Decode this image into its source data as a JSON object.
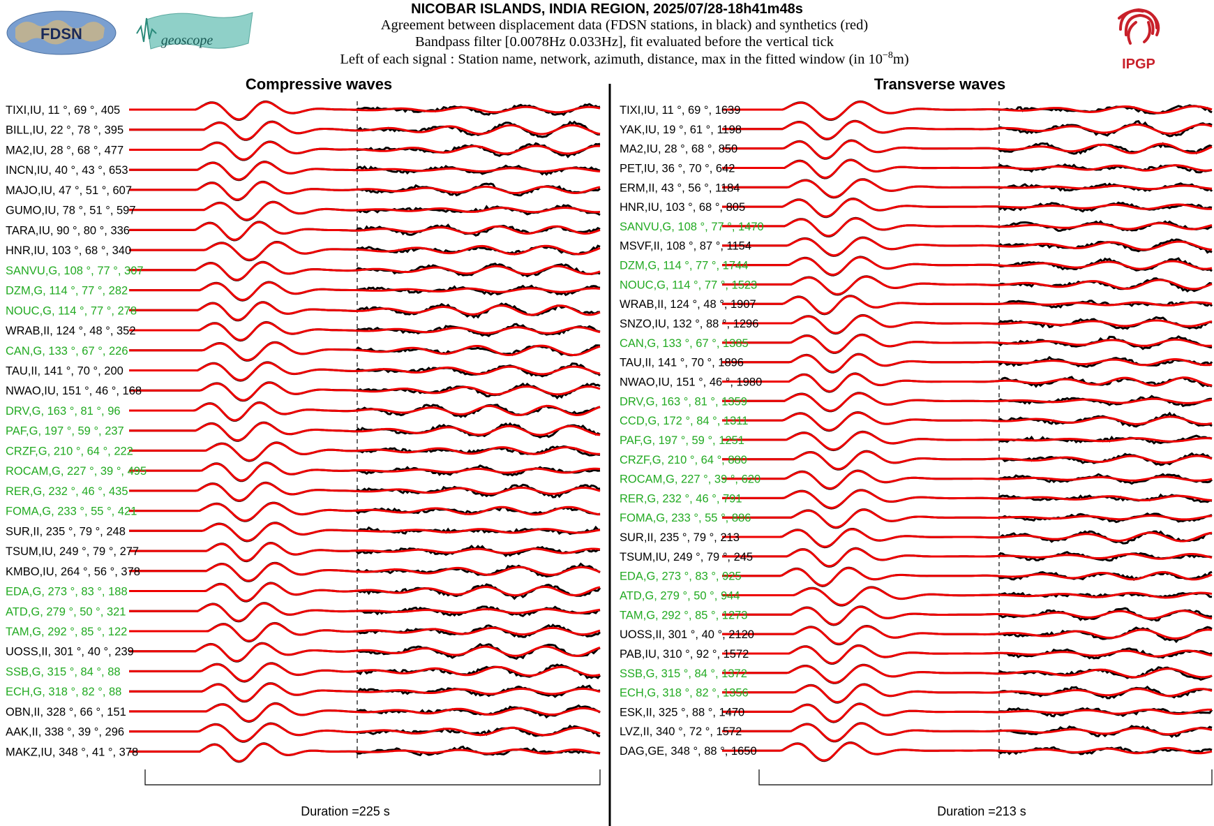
{
  "header": {
    "title": "NICOBAR ISLANDS, INDIA REGION, 2025/07/28-18h41m48s",
    "line1": "Agreement between displacement data (FDSN stations, in black) and synthetics (red)",
    "line2": "Bandpass filter [0.0078Hz 0.033Hz], fit evaluated before the vertical tick",
    "line3_prefix": "Left of each signal : Station name, network, azimuth, distance, max in the fitted window (in 10",
    "line3_exp": "−8",
    "line3_suffix": "m)"
  },
  "logos": {
    "fdsn": "FDSN",
    "geoscope": "geoscope",
    "ipgp": "IPGP"
  },
  "colors": {
    "data": "#000000",
    "synthetic": "#ee0000",
    "geoscope_label": "#22aa22",
    "default_label": "#000000"
  },
  "chart_data": [
    {
      "type": "line",
      "title": "Compressive waves",
      "duration_label": "Duration =225 s",
      "duration_s": 225,
      "series_legend": {
        "data": "black",
        "synthetics": "red"
      },
      "stations": [
        {
          "label": "TIXI,IU, 11 °, 69 °, 405",
          "net": "IU",
          "az": 11,
          "dist": 69,
          "max": 405
        },
        {
          "label": "BILL,IU, 22 °, 78 °, 395",
          "net": "IU",
          "az": 22,
          "dist": 78,
          "max": 395
        },
        {
          "label": "MA2,IU, 28 °, 68 °, 477",
          "net": "IU",
          "az": 28,
          "dist": 68,
          "max": 477
        },
        {
          "label": "INCN,IU, 40 °, 43 °, 653",
          "net": "IU",
          "az": 40,
          "dist": 43,
          "max": 653
        },
        {
          "label": "MAJO,IU, 47 °, 51 °, 607",
          "net": "IU",
          "az": 47,
          "dist": 51,
          "max": 607
        },
        {
          "label": "GUMO,IU, 78 °, 51 °, 597",
          "net": "IU",
          "az": 78,
          "dist": 51,
          "max": 597
        },
        {
          "label": "TARA,IU, 90 °, 80 °, 336",
          "net": "IU",
          "az": 90,
          "dist": 80,
          "max": 336
        },
        {
          "label": "HNR,IU, 103 °, 68 °, 340",
          "net": "IU",
          "az": 103,
          "dist": 68,
          "max": 340
        },
        {
          "label": "SANVU,G, 108 °, 77 °, 307",
          "net": "G",
          "az": 108,
          "dist": 77,
          "max": 307
        },
        {
          "label": "DZM,G, 114 °, 77 °, 282",
          "net": "G",
          "az": 114,
          "dist": 77,
          "max": 282
        },
        {
          "label": "NOUC,G, 114 °, 77 °, 278",
          "net": "G",
          "az": 114,
          "dist": 77,
          "max": 278
        },
        {
          "label": "WRAB,II, 124 °, 48 °, 352",
          "net": "II",
          "az": 124,
          "dist": 48,
          "max": 352
        },
        {
          "label": "CAN,G, 133 °, 67 °, 226",
          "net": "G",
          "az": 133,
          "dist": 67,
          "max": 226
        },
        {
          "label": "TAU,II, 141 °, 70 °, 200",
          "net": "II",
          "az": 141,
          "dist": 70,
          "max": 200
        },
        {
          "label": "NWAO,IU, 151 °, 46 °, 168",
          "net": "IU",
          "az": 151,
          "dist": 46,
          "max": 168
        },
        {
          "label": "DRV,G, 163 °, 81 °, 96",
          "net": "G",
          "az": 163,
          "dist": 81,
          "max": 96
        },
        {
          "label": "PAF,G, 197 °, 59 °, 237",
          "net": "G",
          "az": 197,
          "dist": 59,
          "max": 237
        },
        {
          "label": "CRZF,G, 210 °, 64 °, 222",
          "net": "G",
          "az": 210,
          "dist": 64,
          "max": 222
        },
        {
          "label": "ROCAM,G, 227 °, 39 °, 495",
          "net": "G",
          "az": 227,
          "dist": 39,
          "max": 495
        },
        {
          "label": "RER,G, 232 °, 46 °, 435",
          "net": "G",
          "az": 232,
          "dist": 46,
          "max": 435
        },
        {
          "label": "FOMA,G, 233 °, 55 °, 421",
          "net": "G",
          "az": 233,
          "dist": 55,
          "max": 421
        },
        {
          "label": "SUR,II, 235 °, 79 °, 248",
          "net": "II",
          "az": 235,
          "dist": 79,
          "max": 248
        },
        {
          "label": "TSUM,IU, 249 °, 79 °, 277",
          "net": "IU",
          "az": 249,
          "dist": 79,
          "max": 277
        },
        {
          "label": "KMBO,IU, 264 °, 56 °, 378",
          "net": "IU",
          "az": 264,
          "dist": 56,
          "max": 378
        },
        {
          "label": "EDA,G, 273 °, 83 °, 188",
          "net": "G",
          "az": 273,
          "dist": 83,
          "max": 188
        },
        {
          "label": "ATD,G, 279 °, 50 °, 321",
          "net": "G",
          "az": 279,
          "dist": 50,
          "max": 321
        },
        {
          "label": "TAM,G, 292 °, 85 °, 122",
          "net": "G",
          "az": 292,
          "dist": 85,
          "max": 122
        },
        {
          "label": "UOSS,II, 301 °, 40 °, 239",
          "net": "II",
          "az": 301,
          "dist": 40,
          "max": 239
        },
        {
          "label": "SSB,G, 315 °, 84 °, 88",
          "net": "G",
          "az": 315,
          "dist": 84,
          "max": 88
        },
        {
          "label": "ECH,G, 318 °, 82 °, 88",
          "net": "G",
          "az": 318,
          "dist": 82,
          "max": 88
        },
        {
          "label": "OBN,II, 328 °, 66 °, 151",
          "net": "II",
          "az": 328,
          "dist": 66,
          "max": 151
        },
        {
          "label": "AAK,II, 338 °, 39 °, 296",
          "net": "II",
          "az": 338,
          "dist": 39,
          "max": 296
        },
        {
          "label": "MAKZ,IU, 348 °, 41 °, 378",
          "net": "IU",
          "az": 348,
          "dist": 41,
          "max": 378
        }
      ]
    },
    {
      "type": "line",
      "title": "Transverse waves",
      "duration_label": "Duration =213 s",
      "duration_s": 213,
      "series_legend": {
        "data": "black",
        "synthetics": "red"
      },
      "stations": [
        {
          "label": "TIXI,IU, 11 °, 69 °, 1639",
          "net": "IU",
          "az": 11,
          "dist": 69,
          "max": 1639
        },
        {
          "label": "YAK,IU, 19 °, 61 °, 1198",
          "net": "IU",
          "az": 19,
          "dist": 61,
          "max": 1198
        },
        {
          "label": "MA2,IU, 28 °, 68 °, 850",
          "net": "IU",
          "az": 28,
          "dist": 68,
          "max": 850
        },
        {
          "label": "PET,IU, 36 °, 70 °, 642",
          "net": "IU",
          "az": 36,
          "dist": 70,
          "max": 642
        },
        {
          "label": "ERM,II, 43 °, 56 °, 1184",
          "net": "II",
          "az": 43,
          "dist": 56,
          "max": 1184
        },
        {
          "label": "HNR,IU, 103 °, 68 °, 805",
          "net": "IU",
          "az": 103,
          "dist": 68,
          "max": 805
        },
        {
          "label": "SANVU,G, 108 °, 77 °, 1470",
          "net": "G",
          "az": 108,
          "dist": 77,
          "max": 1470
        },
        {
          "label": "MSVF,II, 108 °, 87 °, 1154",
          "net": "II",
          "az": 108,
          "dist": 87,
          "max": 1154
        },
        {
          "label": "DZM,G, 114 °, 77 °, 1744",
          "net": "G",
          "az": 114,
          "dist": 77,
          "max": 1744
        },
        {
          "label": "NOUC,G, 114 °, 77 °, 1523",
          "net": "G",
          "az": 114,
          "dist": 77,
          "max": 1523
        },
        {
          "label": "WRAB,II, 124 °, 48 °, 1907",
          "net": "II",
          "az": 124,
          "dist": 48,
          "max": 1907
        },
        {
          "label": "SNZO,IU, 132 °, 88 °, 1296",
          "net": "IU",
          "az": 132,
          "dist": 88,
          "max": 1296
        },
        {
          "label": "CAN,G, 133 °, 67 °, 1385",
          "net": "G",
          "az": 133,
          "dist": 67,
          "max": 1385
        },
        {
          "label": "TAU,II, 141 °, 70 °, 1896",
          "net": "II",
          "az": 141,
          "dist": 70,
          "max": 1896
        },
        {
          "label": "NWAO,IU, 151 °, 46 °, 1980",
          "net": "IU",
          "az": 151,
          "dist": 46,
          "max": 1980
        },
        {
          "label": "DRV,G, 163 °, 81 °, 1359",
          "net": "G",
          "az": 163,
          "dist": 81,
          "max": 1359
        },
        {
          "label": "CCD,G, 172 °, 84 °, 1311",
          "net": "G",
          "az": 172,
          "dist": 84,
          "max": 1311
        },
        {
          "label": "PAF,G, 197 °, 59 °, 1251",
          "net": "G",
          "az": 197,
          "dist": 59,
          "max": 1251
        },
        {
          "label": "CRZF,G, 210 °, 64 °, 880",
          "net": "G",
          "az": 210,
          "dist": 64,
          "max": 880
        },
        {
          "label": "ROCAM,G, 227 °, 39 °, 620",
          "net": "G",
          "az": 227,
          "dist": 39,
          "max": 620
        },
        {
          "label": "RER,G, 232 °, 46 °, 791",
          "net": "G",
          "az": 232,
          "dist": 46,
          "max": 791
        },
        {
          "label": "FOMA,G, 233 °, 55 °, 886",
          "net": "G",
          "az": 233,
          "dist": 55,
          "max": 886
        },
        {
          "label": "SUR,II, 235 °, 79 °, 213",
          "net": "II",
          "az": 235,
          "dist": 79,
          "max": 213
        },
        {
          "label": "TSUM,IU, 249 °, 79 °, 245",
          "net": "IU",
          "az": 249,
          "dist": 79,
          "max": 245
        },
        {
          "label": "EDA,G, 273 °, 83 °, 925",
          "net": "G",
          "az": 273,
          "dist": 83,
          "max": 925
        },
        {
          "label": "ATD,G, 279 °, 50 °, 944",
          "net": "G",
          "az": 279,
          "dist": 50,
          "max": 944
        },
        {
          "label": "TAM,G, 292 °, 85 °, 1273",
          "net": "G",
          "az": 292,
          "dist": 85,
          "max": 1273
        },
        {
          "label": "UOSS,II, 301 °, 40 °, 2120",
          "net": "II",
          "az": 301,
          "dist": 40,
          "max": 2120
        },
        {
          "label": "PAB,IU, 310 °, 92 °, 1572",
          "net": "IU",
          "az": 310,
          "dist": 92,
          "max": 1572
        },
        {
          "label": "SSB,G, 315 °, 84 °, 1372",
          "net": "G",
          "az": 315,
          "dist": 84,
          "max": 1372
        },
        {
          "label": "ECH,G, 318 °, 82 °, 1356",
          "net": "G",
          "az": 318,
          "dist": 82,
          "max": 1356
        },
        {
          "label": "ESK,II, 325 °, 88 °, 1470",
          "net": "II",
          "az": 325,
          "dist": 88,
          "max": 1470
        },
        {
          "label": "LVZ,II, 340 °, 72 °, 1572",
          "net": "II",
          "az": 340,
          "dist": 72,
          "max": 1572
        },
        {
          "label": "DAG,GE, 348 °, 88 °, 1650",
          "net": "GE",
          "az": 348,
          "dist": 88,
          "max": 1650
        }
      ]
    }
  ]
}
